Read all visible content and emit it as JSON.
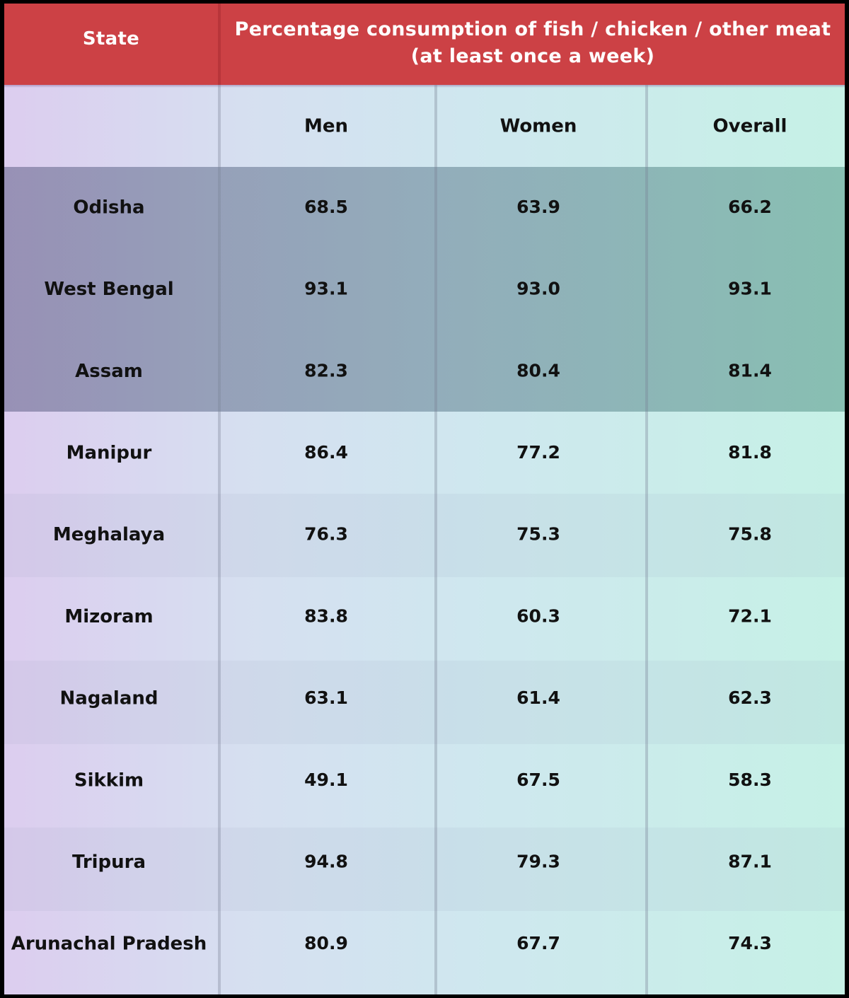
{
  "chart_data": {
    "type": "table",
    "header": {
      "state": "State",
      "group_line1": "Percentage consumption of fish / chicken / other meat",
      "group_line2": "(at least once a week)"
    },
    "columns": [
      "Men",
      "Women",
      "Overall"
    ],
    "rows": [
      {
        "state": "Odisha",
        "men": "68.5",
        "women": "63.9",
        "overall": "66.2"
      },
      {
        "state": "West Bengal",
        "men": "93.1",
        "women": "93.0",
        "overall": "93.1"
      },
      {
        "state": "Assam",
        "men": "82.3",
        "women": "80.4",
        "overall": "81.4"
      },
      {
        "state": "Manipur",
        "men": "86.4",
        "women": "77.2",
        "overall": "81.8"
      },
      {
        "state": "Meghalaya",
        "men": "76.3",
        "women": "75.3",
        "overall": "75.8"
      },
      {
        "state": "Mizoram",
        "men": "83.8",
        "women": "60.3",
        "overall": "72.1"
      },
      {
        "state": "Nagaland",
        "men": "63.1",
        "women": "61.4",
        "overall": "62.3"
      },
      {
        "state": "Sikkim",
        "men": "49.1",
        "women": "67.5",
        "overall": "58.3"
      },
      {
        "state": "Tripura",
        "men": "94.8",
        "women": "79.3",
        "overall": "87.1"
      },
      {
        "state": "Arunachal Pradesh",
        "men": "80.9",
        "women": "67.7",
        "overall": "74.3"
      }
    ],
    "highlighted_rows": [
      "Odisha",
      "West Bengal",
      "Assam"
    ],
    "colors": {
      "header_bg": "#cc4145",
      "header_text": "#ffffff",
      "body_text": "#111111",
      "highlight_tint": "#5f6f87"
    }
  }
}
